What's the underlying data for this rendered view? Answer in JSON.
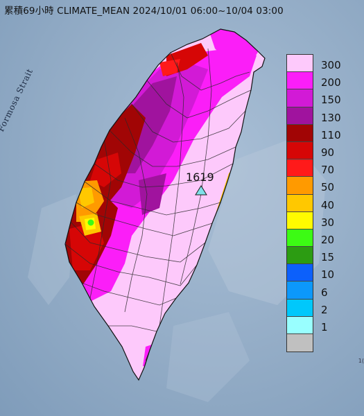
{
  "title": "累積69小時 CLIMATE_MEAN 2024/10/01 06:00~10/04 03:00",
  "sea_label": "Formosa Strait",
  "station": {
    "label": "1619",
    "icon": "triangle-icon",
    "color": "#7fe0e8"
  },
  "legend": [
    {
      "label": "300",
      "color": "#fdc9fb"
    },
    {
      "label": "200",
      "color": "#fb1ef8"
    },
    {
      "label": "150",
      "color": "#d21ad6"
    },
    {
      "label": "130",
      "color": "#a0139e"
    },
    {
      "label": "110",
      "color": "#a10505"
    },
    {
      "label": "90",
      "color": "#d60606"
    },
    {
      "label": "70",
      "color": "#ff1a1a"
    },
    {
      "label": "50",
      "color": "#ff9a00"
    },
    {
      "label": "40",
      "color": "#ffc800"
    },
    {
      "label": "30",
      "color": "#fffb00"
    },
    {
      "label": "20",
      "color": "#3cfb14"
    },
    {
      "label": "15",
      "color": "#2c9c12"
    },
    {
      "label": "10",
      "color": "#0c60fb"
    },
    {
      "label": "6",
      "color": "#0c98fb"
    },
    {
      "label": "2",
      "color": "#00c8fb"
    },
    {
      "label": "1",
      "color": "#99ffff"
    },
    {
      "label": "",
      "color": "#c0c0c0"
    }
  ],
  "corner_text": "1("
}
